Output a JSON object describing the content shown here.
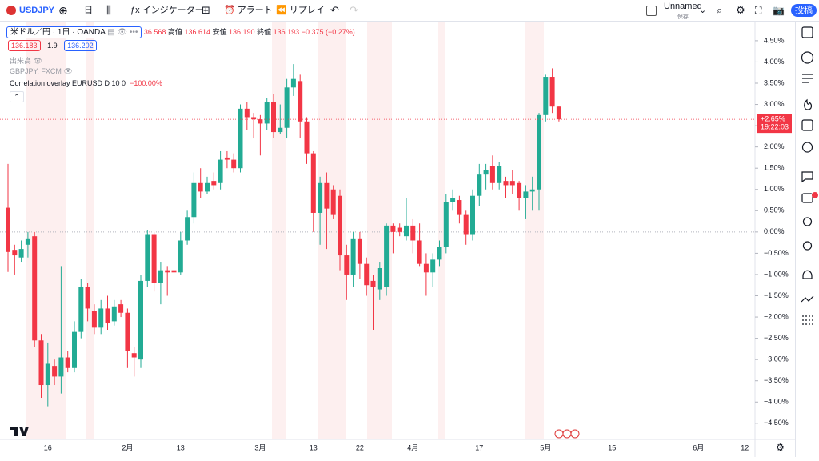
{
  "toolbar": {
    "symbol": "USDJPY",
    "interval": "日",
    "indicators": "インジケーター",
    "alerts": "アラート",
    "replay": "リプレイ",
    "layout_name": "Unnamed",
    "save": "保存",
    "publish": "投稿"
  },
  "legend": {
    "main": "米ドル／円 · 1日 · OANDA",
    "open_fragment": "36.568",
    "high_label": "高値",
    "high": "136.614",
    "low_label": "安値",
    "low": "136.190",
    "close_label": "終値",
    "close": "136.193",
    "change": "−0.375 (−0.27%)",
    "bid": "136.183",
    "spread": "1.9",
    "ask": "136.202",
    "volume": "出来高",
    "compare": "GBPJPY, FXCM",
    "overlay": "Correlation overlay EURUSD D 10 0",
    "overlay_value": "−100.00%"
  },
  "chart_data": {
    "type": "candlestick",
    "categories": [
      null,
      null,
      null,
      null,
      null,
      null,
      "16",
      null,
      null,
      null,
      null,
      null,
      null,
      null,
      null,
      null,
      null,
      null,
      "2月",
      null,
      null,
      null,
      null,
      null,
      null,
      null,
      "13",
      null,
      null,
      null,
      null,
      null,
      null,
      null,
      null,
      null,
      null,
      null,
      "3月",
      null,
      null,
      null,
      null,
      null,
      null,
      null,
      "13",
      null,
      null,
      null,
      null,
      null,
      null,
      "22",
      null,
      null,
      null,
      null,
      null,
      null,
      null,
      "4月",
      null,
      null,
      null,
      null,
      null,
      null,
      null,
      null,
      null,
      "17",
      null,
      null,
      null,
      null,
      null,
      null,
      null,
      null,
      null,
      "5月",
      null,
      null,
      null,
      null,
      null,
      null,
      null,
      null,
      null,
      "15",
      null,
      null,
      null,
      null,
      null,
      null,
      null,
      null,
      null,
      null,
      null,
      null,
      "6月",
      null,
      null,
      null,
      null,
      null,
      null,
      "12"
    ],
    "open": [
      0.57,
      -0.42,
      -0.6,
      -0.3,
      -0.1,
      -2.55,
      -3.6,
      -3.15,
      -3.4,
      -2.95,
      -3.2,
      -2.35,
      -1.3,
      -1.85,
      -2.25,
      -1.8,
      -2.1,
      -1.7,
      -1.9,
      -2.85,
      -3.0,
      -1.15,
      -0.05,
      -1.2,
      -0.9,
      -0.9,
      -0.95,
      -0.2,
      0.35,
      1.15,
      0.95,
      1.2,
      1.15,
      1.75,
      1.7,
      1.5,
      2.9,
      2.7,
      2.65,
      2.55,
      3.05,
      2.35,
      2.45,
      3.4,
      3.55,
      2.6,
      1.85,
      0.45,
      1.15,
      1.0,
      0.85,
      -0.55,
      -1.0,
      -0.15,
      -0.75,
      -1.15,
      -1.35,
      -1.3,
      0.15,
      0.1,
      -0.1,
      0.15,
      -0.2,
      -0.75,
      -0.95,
      -0.65,
      -0.35,
      0.7,
      0.75,
      0.4,
      -0.05,
      0.85,
      1.35,
      1.55,
      1.15,
      1.2,
      1.2,
      1.15,
      0.8,
      0.95,
      1.0,
      2.75,
      3.65,
      2.95,
      null,
      null,
      null,
      null,
      null,
      null,
      null,
      null,
      null,
      null,
      null,
      null,
      null,
      null,
      null,
      null,
      null,
      null,
      null,
      null,
      null,
      null,
      null,
      null,
      null,
      null,
      null,
      null
    ],
    "high": [
      1.6,
      -0.3,
      -0.2,
      0.0,
      0.0,
      -2.4,
      -2.6,
      -3.0,
      -0.8,
      -2.8,
      -2.1,
      -1.1,
      -1.2,
      -1.7,
      -1.6,
      -1.5,
      -1.6,
      -1.6,
      -1.8,
      -2.7,
      -1.0,
      0.05,
      0.0,
      -0.7,
      -0.8,
      -0.85,
      0.0,
      0.5,
      1.4,
      1.5,
      1.3,
      1.4,
      1.9,
      1.9,
      1.85,
      3.0,
      3.05,
      2.8,
      2.75,
      3.15,
      3.25,
      3.0,
      3.6,
      3.95,
      3.7,
      2.7,
      1.9,
      1.3,
      1.4,
      1.1,
      1.0,
      -0.3,
      0.0,
      0.0,
      -0.6,
      -1.0,
      -0.7,
      0.2,
      0.2,
      0.2,
      0.8,
      0.3,
      0.2,
      -0.5,
      -0.5,
      -0.2,
      0.9,
      1.0,
      0.85,
      0.5,
      1.0,
      1.6,
      1.6,
      1.8,
      1.65,
      1.3,
      1.45,
      1.2,
      1.1,
      1.3,
      2.8,
      3.7,
      3.85,
      2.95,
      null,
      null,
      null,
      null,
      null,
      null,
      null,
      null,
      null,
      null,
      null,
      null,
      null,
      null,
      null,
      null,
      null,
      null,
      null,
      null,
      null,
      null,
      null,
      null,
      null,
      null,
      null,
      null
    ],
    "low": [
      -0.94,
      -1.0,
      -0.7,
      -0.6,
      -2.7,
      -3.9,
      -4.1,
      -3.6,
      -3.8,
      -3.3,
      -3.3,
      -2.5,
      -2.1,
      -2.4,
      -2.4,
      -2.3,
      -2.2,
      -2.0,
      -3.2,
      -3.4,
      -3.2,
      -1.3,
      -1.4,
      -1.7,
      -1.5,
      -2.1,
      -1.0,
      -0.3,
      0.2,
      0.8,
      0.9,
      1.0,
      1.0,
      1.5,
      1.4,
      1.4,
      2.4,
      2.2,
      1.8,
      2.4,
      2.2,
      2.3,
      2.2,
      3.2,
      2.2,
      1.6,
      0.0,
      -0.3,
      -0.4,
      0.3,
      -0.9,
      -1.6,
      -1.3,
      -1.1,
      -1.5,
      -2.3,
      -1.6,
      -1.5,
      -0.5,
      -0.1,
      -0.2,
      -0.5,
      -0.8,
      -1.5,
      -1.3,
      -0.8,
      -0.5,
      0.5,
      0.2,
      -0.3,
      -0.2,
      0.6,
      1.0,
      1.0,
      1.0,
      0.8,
      0.9,
      0.5,
      0.3,
      0.5,
      0.5,
      2.6,
      2.8,
      2.6,
      null,
      null,
      null,
      null,
      null,
      null,
      null,
      null,
      null,
      null,
      null,
      null,
      null,
      null,
      null,
      null,
      null,
      null,
      null,
      null,
      null,
      null,
      null,
      null,
      null,
      null,
      null,
      null
    ],
    "close": [
      -0.47,
      -0.55,
      -0.4,
      -0.15,
      -2.55,
      -3.6,
      -3.1,
      -3.4,
      -2.95,
      -3.2,
      -2.35,
      -1.3,
      -1.8,
      -2.25,
      -1.8,
      -2.15,
      -1.75,
      -1.9,
      -2.8,
      -2.95,
      -1.15,
      -0.05,
      -1.2,
      -0.9,
      -0.95,
      -0.95,
      -0.2,
      0.35,
      1.15,
      0.95,
      1.15,
      1.1,
      1.7,
      1.7,
      1.5,
      2.9,
      2.7,
      2.65,
      2.55,
      3.05,
      2.35,
      2.45,
      3.4,
      3.6,
      2.6,
      1.85,
      0.45,
      1.15,
      0.55,
      0.4,
      -0.55,
      -1.0,
      -0.15,
      -0.75,
      -1.25,
      -1.3,
      -0.85,
      0.15,
      0.0,
      0.0,
      0.15,
      -0.2,
      -0.75,
      -0.95,
      -0.65,
      -0.35,
      0.7,
      0.8,
      0.4,
      -0.05,
      0.85,
      1.35,
      1.45,
      1.15,
      1.55,
      1.1,
      1.1,
      0.8,
      0.95,
      1.0,
      2.75,
      3.65,
      2.95,
      2.65,
      null,
      null,
      null,
      null,
      null,
      null,
      null,
      null,
      null,
      null,
      null,
      null,
      null,
      null,
      null,
      null,
      null,
      null,
      null,
      null,
      null,
      null,
      null,
      null,
      null,
      null,
      null,
      null
    ],
    "up_color": "#22ab94",
    "down_color": "#f23645",
    "ylim": [
      -4.88,
      4.95
    ],
    "yticks": [
      {
        "value": 4.5,
        "label": "4.50%"
      },
      {
        "value": 4.0,
        "label": "4.00%"
      },
      {
        "value": 3.5,
        "label": "3.50%"
      },
      {
        "value": 3.0,
        "label": "3.00%"
      },
      {
        "value": 2.5,
        "label": "2.50%"
      },
      {
        "value": 2.0,
        "label": "2.00%"
      },
      {
        "value": 1.5,
        "label": "1.50%"
      },
      {
        "value": 1.0,
        "label": "1.00%"
      },
      {
        "value": 0.5,
        "label": "0.50%"
      },
      {
        "value": 0,
        "label": "0.00%"
      },
      {
        "value": -0.5,
        "label": "−0.50%"
      },
      {
        "value": -1.0,
        "label": "−1.00%"
      },
      {
        "value": -1.5,
        "label": "−1.50%"
      },
      {
        "value": -2.0,
        "label": "−2.00%"
      },
      {
        "value": -2.5,
        "label": "−2.50%"
      },
      {
        "value": -3.0,
        "label": "−3.00%"
      },
      {
        "value": -3.5,
        "label": "−3.50%"
      },
      {
        "value": -4.0,
        "label": "−4.00%"
      },
      {
        "value": -4.5,
        "label": "−4.50%"
      }
    ],
    "grid": false,
    "last": {
      "value": 2.65,
      "label": "+2.65%"
    },
    "countdown": "19:22:03"
  }
}
